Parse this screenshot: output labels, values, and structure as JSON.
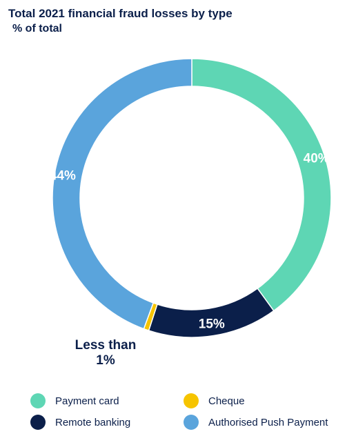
{
  "title": "Total 2021 financial fraud losses by type",
  "subtitle": "% of total",
  "chart_data": {
    "type": "pie",
    "title": "Total 2021 financial fraud losses by type",
    "subtitle": "% of total",
    "donut": true,
    "series": [
      {
        "name": "Payment card",
        "value": 40,
        "label": "40%",
        "color": "#5ed6b4"
      },
      {
        "name": "Remote banking",
        "value": 15,
        "label": "15%",
        "color": "#0b1f4a"
      },
      {
        "name": "Cheque",
        "value": 0.6,
        "label": "",
        "color": "#f6c400"
      },
      {
        "name": "Authorised Push Payment",
        "value": 44.4,
        "label": "44%",
        "color": "#5aa4dc"
      }
    ],
    "legend_placement": "bottom",
    "annotation": "Less than 1%"
  },
  "annotation": {
    "line1": "Less than",
    "line2": "1%"
  },
  "legend": [
    {
      "label": "Payment card",
      "color": "#5ed6b4"
    },
    {
      "label": "Cheque",
      "color": "#f6c400"
    },
    {
      "label": "Remote banking",
      "color": "#0b1f4a"
    },
    {
      "label": "Authorised Push Payment",
      "color": "#5aa4dc"
    }
  ]
}
